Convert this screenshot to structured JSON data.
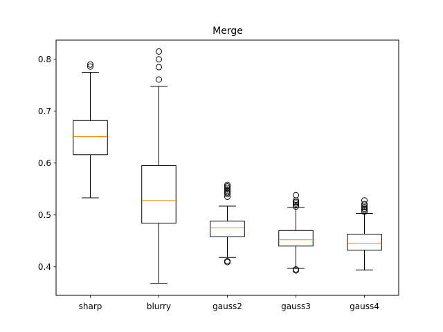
{
  "chart_data": {
    "type": "box",
    "title": "Merge",
    "xlabel": "",
    "ylabel": "",
    "ylim": [
      0.345,
      0.837
    ],
    "yticks": [
      0.4,
      0.5,
      0.6,
      0.7,
      0.8
    ],
    "ytick_labels": [
      "0.4",
      "0.5",
      "0.6",
      "0.7",
      "0.8"
    ],
    "categories": [
      "sharp",
      "blurry",
      "gauss2",
      "gauss3",
      "gauss4"
    ],
    "boxes": [
      {
        "label": "sharp",
        "whislo": 0.533,
        "q1": 0.616,
        "med": 0.651,
        "q3": 0.682,
        "whishi": 0.775,
        "fliers": [
          0.786,
          0.79
        ]
      },
      {
        "label": "blurry",
        "whislo": 0.368,
        "q1": 0.484,
        "med": 0.528,
        "q3": 0.595,
        "whishi": 0.748,
        "fliers": [
          0.761,
          0.785,
          0.8,
          0.815
        ]
      },
      {
        "label": "gauss2",
        "whislo": 0.418,
        "q1": 0.458,
        "med": 0.475,
        "q3": 0.488,
        "whishi": 0.517,
        "fliers": [
          0.409,
          0.411,
          0.535,
          0.54,
          0.543,
          0.546,
          0.549,
          0.552,
          0.555,
          0.558
        ]
      },
      {
        "label": "gauss3",
        "whislo": 0.397,
        "q1": 0.44,
        "med": 0.452,
        "q3": 0.47,
        "whishi": 0.515,
        "fliers": [
          0.393,
          0.395,
          0.516,
          0.519,
          0.522,
          0.525,
          0.528,
          0.538
        ]
      },
      {
        "label": "gauss4",
        "whislo": 0.394,
        "q1": 0.432,
        "med": 0.445,
        "q3": 0.463,
        "whishi": 0.503,
        "fliers": [
          0.506,
          0.509,
          0.512,
          0.515,
          0.518,
          0.521,
          0.528
        ]
      }
    ],
    "grid": false,
    "colors": {
      "box": "#000000",
      "median": "#ff7f0e",
      "flier": "#000000",
      "background": "#ffffff"
    }
  }
}
